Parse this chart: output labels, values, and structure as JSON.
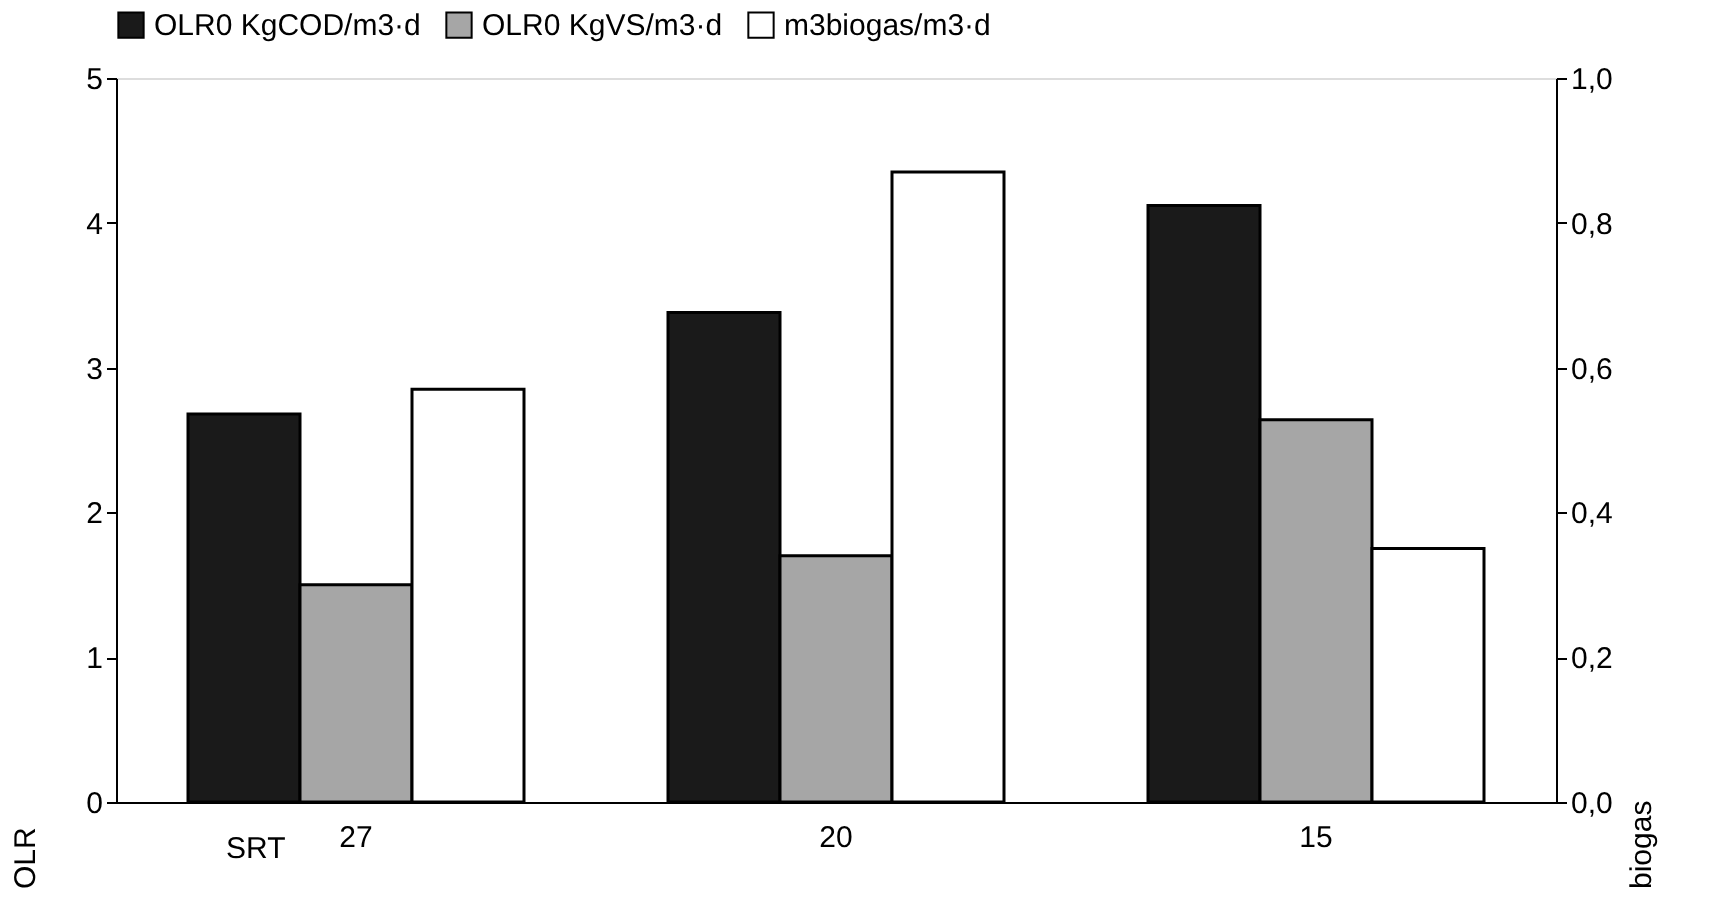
{
  "chart_data": {
    "type": "bar",
    "categories": [
      "27",
      "20",
      "15"
    ],
    "series": [
      {
        "name": "OLR0 KgCOD/m3·d",
        "color": "#1a1a1a",
        "values": [
          2.68,
          3.38,
          4.12
        ]
      },
      {
        "name": "OLR0 KgVS/m3·d",
        "color": "#a6a6a6",
        "values": [
          1.5,
          1.7,
          2.64
        ]
      },
      {
        "name": "m3biogas/m3·d",
        "color": "#ffffff",
        "values": [
          0.57,
          0.87,
          0.35
        ],
        "axis": "y2"
      }
    ],
    "ylabel": "OLR",
    "y2label": "biogas",
    "ylim": [
      0,
      5
    ],
    "yticks": [
      0,
      1,
      2,
      3,
      4,
      5
    ],
    "y2lim": [
      0,
      1
    ],
    "y2ticks": [
      {
        "value": 0,
        "label": "0,0"
      },
      {
        "value": 0.2,
        "label": "0,2"
      },
      {
        "value": 0.4,
        "label": "0,4"
      },
      {
        "value": 0.6,
        "label": "0,6"
      },
      {
        "value": 0.8,
        "label": "0,8"
      },
      {
        "value": 1,
        "label": "1,0"
      }
    ],
    "annotations": [
      "SRT"
    ],
    "legend": "top",
    "grid": false
  }
}
